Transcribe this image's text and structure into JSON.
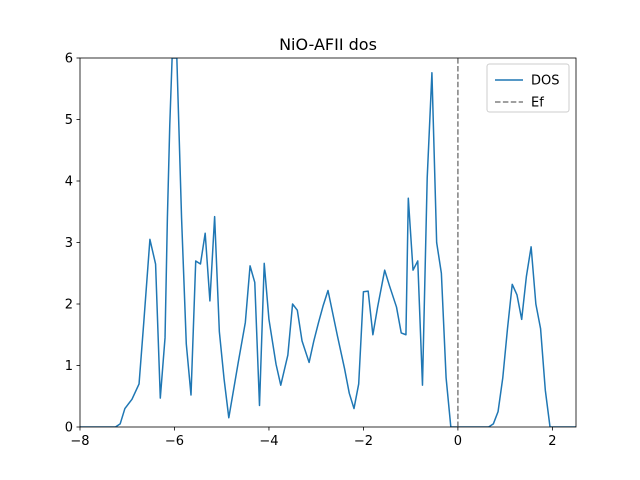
{
  "chart_data": {
    "type": "line",
    "title": "NiO-AFII dos",
    "xlabel": "",
    "ylabel": "",
    "xlim": [
      -8,
      2.5
    ],
    "ylim": [
      0,
      6
    ],
    "xticks": [
      -8,
      -6,
      -4,
      -2,
      0,
      2
    ],
    "yticks": [
      0,
      1,
      2,
      3,
      4,
      5,
      6
    ],
    "xtick_labels": [
      "−8",
      "−6",
      "−4",
      "−2",
      "0",
      "2"
    ],
    "ytick_labels": [
      "0",
      "1",
      "2",
      "3",
      "4",
      "5",
      "6"
    ],
    "grid": false,
    "legend_position": "top-right",
    "series": [
      {
        "name": "DOS",
        "color": "#1f77b4",
        "style": "solid",
        "x": [
          -8.0,
          -7.5,
          -7.25,
          -7.15,
          -7.05,
          -6.9,
          -6.75,
          -6.65,
          -6.52,
          -6.4,
          -6.3,
          -6.2,
          -6.15,
          -6.1,
          -6.05,
          -5.95,
          -5.85,
          -5.75,
          -5.65,
          -5.55,
          -5.45,
          -5.35,
          -5.25,
          -5.15,
          -5.05,
          -4.95,
          -4.85,
          -4.75,
          -4.65,
          -4.5,
          -4.4,
          -4.3,
          -4.2,
          -4.1,
          -4.0,
          -3.85,
          -3.75,
          -3.6,
          -3.5,
          -3.4,
          -3.3,
          -3.15,
          -3.05,
          -2.95,
          -2.85,
          -2.75,
          -2.65,
          -2.55,
          -2.4,
          -2.3,
          -2.2,
          -2.1,
          -2.0,
          -1.9,
          -1.8,
          -1.7,
          -1.55,
          -1.45,
          -1.3,
          -1.2,
          -1.1,
          -1.05,
          -0.95,
          -0.85,
          -0.75,
          -0.65,
          -0.55,
          -0.45,
          -0.35,
          -0.25,
          -0.15,
          -0.05,
          0.0,
          0.3,
          0.5,
          0.65,
          0.75,
          0.85,
          0.95,
          1.05,
          1.15,
          1.25,
          1.35,
          1.45,
          1.55,
          1.65,
          1.75,
          1.85,
          1.95,
          2.05,
          2.15,
          2.5
        ],
        "y": [
          0.0,
          0.0,
          0.0,
          0.05,
          0.3,
          0.45,
          0.7,
          1.7,
          3.05,
          2.65,
          0.47,
          1.45,
          3.4,
          4.9,
          6.0,
          6.0,
          3.4,
          1.35,
          0.52,
          2.7,
          2.65,
          3.15,
          2.05,
          3.42,
          1.55,
          0.78,
          0.15,
          0.6,
          1.05,
          1.7,
          2.62,
          2.35,
          0.35,
          2.66,
          1.75,
          1.02,
          0.68,
          1.17,
          2.0,
          1.9,
          1.4,
          1.05,
          1.4,
          1.7,
          1.98,
          2.22,
          1.85,
          1.48,
          0.95,
          0.55,
          0.3,
          0.7,
          2.2,
          2.21,
          1.5,
          1.95,
          2.55,
          2.3,
          1.95,
          1.53,
          1.5,
          3.72,
          2.55,
          2.7,
          0.68,
          4.05,
          5.76,
          3.0,
          2.5,
          0.8,
          0.0,
          0.0,
          0.0,
          0.0,
          0.0,
          0.0,
          0.05,
          0.25,
          0.8,
          1.6,
          2.32,
          2.15,
          1.75,
          2.45,
          2.93,
          2.0,
          1.6,
          0.6,
          0.0,
          0.0,
          0.0,
          0.0
        ]
      },
      {
        "name": "Ef",
        "color": "#808080",
        "style": "dashed",
        "x": [
          0,
          0
        ],
        "y": [
          0,
          6
        ]
      }
    ]
  }
}
